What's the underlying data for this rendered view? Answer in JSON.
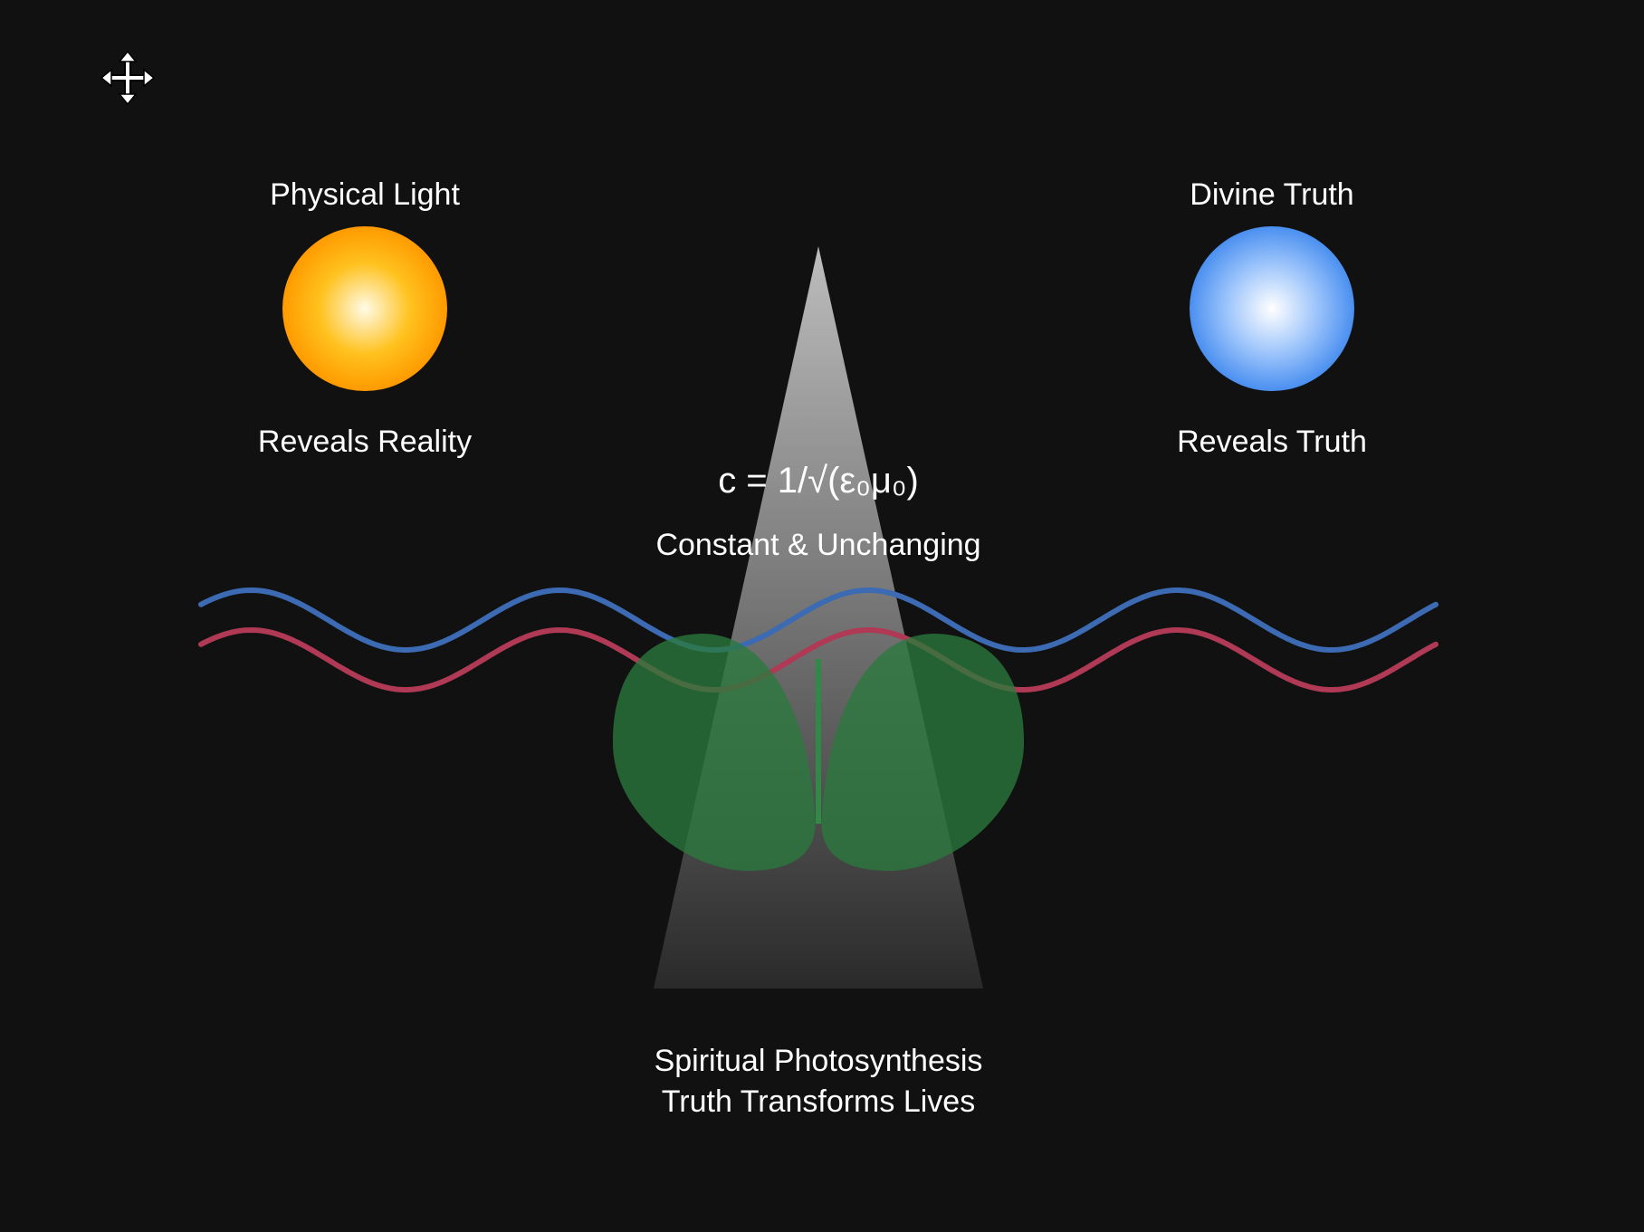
{
  "toolbar": {
    "move_icon": "move-arrows-icon"
  },
  "left_source": {
    "title": "Physical Light",
    "caption": "Reveals Reality",
    "color_center": "#fffbe8",
    "color_mid": "#ffc21f",
    "color_edge": "#ff9a00"
  },
  "right_source": {
    "title": "Divine Truth",
    "caption": "Reveals Truth",
    "color_center": "#ffffff",
    "color_mid": "#9cc4fb",
    "color_edge": "#4a8ff0"
  },
  "beam": {
    "formula": "c = 1/√(ε₀μ₀)",
    "subtitle": "Constant & Unchanging",
    "color_top": "#bdbdbd",
    "color_bottom": "#2a2a2a"
  },
  "waves": [
    {
      "name": "blue-wave",
      "color": "#3d6bb3"
    },
    {
      "name": "red-wave",
      "color": "#b03a55"
    }
  ],
  "plant": {
    "leaf_color": "#2a7a3e",
    "stem_color": "#2f8a45"
  },
  "footer": {
    "line1": "Spiritual Photosynthesis",
    "line2": "Truth Transforms Lives"
  }
}
